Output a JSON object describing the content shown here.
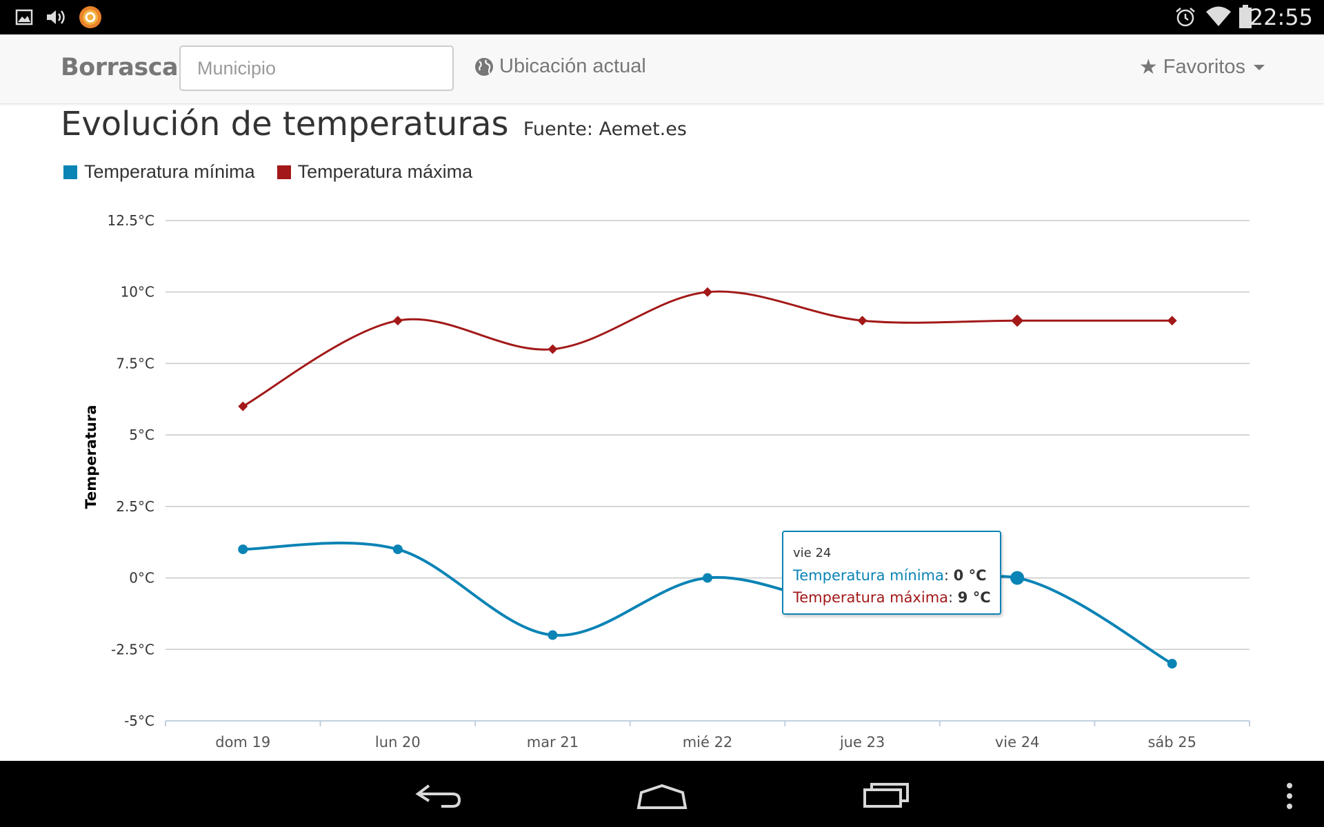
{
  "status_bar": {
    "time": "22:55",
    "left_icons": [
      "gallery-icon",
      "volume-icon",
      "app-notification-icon"
    ],
    "right_icons": [
      "alarm-icon",
      "wifi-icon",
      "battery-icon"
    ]
  },
  "navbar": {
    "brand": "Borrasca",
    "search_placeholder": "Municipio",
    "location_label": "Ubicación actual",
    "favorites_label": "Favoritos"
  },
  "page": {
    "title": "Evolución de temperaturas",
    "source": "Fuente: Aemet.es"
  },
  "chart_data": {
    "type": "line",
    "title": "",
    "ylabel": "Temperatura",
    "xlabel": "",
    "categories": [
      "dom 19",
      "lun 20",
      "mar 21",
      "mié 22",
      "jue 23",
      "vie 24",
      "sáb 25"
    ],
    "ylim": [
      -5,
      12.5
    ],
    "yticks": [
      -5,
      -2.5,
      0,
      2.5,
      5,
      7.5,
      10,
      12.5
    ],
    "ytick_labels": [
      "-5°C",
      "-2.5°C",
      "0°C",
      "2.5°C",
      "5°C",
      "7.5°C",
      "10°C",
      "12.5°C"
    ],
    "grid": true,
    "legend_position": "top-left",
    "series": [
      {
        "name": "Temperatura mínima",
        "color": "#0a83b5",
        "marker": "circle",
        "values": [
          1,
          1,
          -2,
          0,
          -1,
          0,
          -3
        ]
      },
      {
        "name": "Temperatura máxima",
        "color": "#a31818",
        "marker": "diamond",
        "values": [
          6,
          9,
          8,
          10,
          9,
          9,
          9
        ]
      }
    ],
    "tooltip": {
      "category": "vie 24",
      "rows": [
        {
          "label": "Temperatura mínima",
          "value": "0 °C",
          "color": "#0a83b5"
        },
        {
          "label": "Temperatura máxima",
          "value": "9 °C",
          "color": "#a31818"
        }
      ]
    }
  },
  "nav_bar": {
    "buttons": [
      "back-icon",
      "home-icon",
      "recents-icon",
      "overflow-menu-icon"
    ]
  }
}
